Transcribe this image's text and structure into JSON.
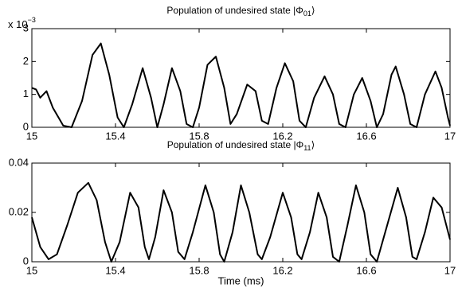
{
  "chart_data": [
    {
      "type": "line",
      "title": "Population of undesired state |Φ",
      "title_subscript": "01",
      "title_suffix": "⟩",
      "y_multiplier": "x 10",
      "y_multiplier_exponent": "−3",
      "color": "#000000",
      "xlim": [
        15,
        17
      ],
      "xticks": [
        15,
        15.4,
        15.8,
        16.2,
        16.6,
        17
      ],
      "ylim": [
        0,
        3
      ],
      "yticks": [
        0,
        1,
        2,
        3
      ],
      "grid": false,
      "x": [
        15.0,
        15.02,
        15.04,
        15.07,
        15.1,
        15.15,
        15.19,
        15.24,
        15.29,
        15.33,
        15.37,
        15.41,
        15.44,
        15.48,
        15.53,
        15.57,
        15.6,
        15.63,
        15.67,
        15.71,
        15.74,
        15.77,
        15.8,
        15.84,
        15.88,
        15.92,
        15.95,
        15.98,
        16.03,
        16.07,
        16.1,
        16.13,
        16.17,
        16.21,
        16.25,
        16.28,
        16.31,
        16.35,
        16.4,
        16.44,
        16.47,
        16.5,
        16.54,
        16.58,
        16.62,
        16.65,
        16.68,
        16.72,
        16.74,
        16.78,
        16.81,
        16.84,
        16.88,
        16.93,
        16.96,
        16.99,
        17.0
      ],
      "values": [
        1.2,
        1.15,
        0.9,
        1.1,
        0.6,
        0.05,
        0.0,
        0.8,
        2.2,
        2.55,
        1.6,
        0.3,
        0.0,
        0.7,
        1.8,
        0.9,
        0.0,
        0.7,
        1.8,
        1.1,
        0.1,
        0.0,
        0.6,
        1.9,
        2.15,
        1.2,
        0.1,
        0.4,
        1.3,
        1.1,
        0.2,
        0.1,
        1.2,
        1.95,
        1.4,
        0.2,
        0.0,
        0.9,
        1.55,
        1.0,
        0.1,
        0.0,
        1.0,
        1.5,
        0.8,
        0.0,
        0.4,
        1.6,
        1.85,
        1.0,
        0.1,
        0.0,
        1.0,
        1.7,
        1.2,
        0.3,
        0.05
      ]
    },
    {
      "type": "line",
      "title": "Population of undesired state |Φ",
      "title_subscript": "11",
      "title_suffix": "⟩",
      "xlabel": "Time (ms)",
      "color": "#000000",
      "xlim": [
        15,
        17
      ],
      "xticks": [
        15,
        15.4,
        15.8,
        16.2,
        16.6,
        17
      ],
      "ylim": [
        0,
        0.04
      ],
      "yticks": [
        0,
        0.02,
        0.04
      ],
      "grid": false,
      "x": [
        15.0,
        15.04,
        15.08,
        15.12,
        15.17,
        15.22,
        15.27,
        15.31,
        15.35,
        15.38,
        15.42,
        15.47,
        15.51,
        15.54,
        15.56,
        15.59,
        15.63,
        15.67,
        15.7,
        15.73,
        15.77,
        15.83,
        15.87,
        15.9,
        15.92,
        15.96,
        16.0,
        16.04,
        16.08,
        16.1,
        16.14,
        16.2,
        16.24,
        16.27,
        16.29,
        16.33,
        16.37,
        16.41,
        16.44,
        16.47,
        16.51,
        16.55,
        16.59,
        16.62,
        16.65,
        16.69,
        16.75,
        16.79,
        16.82,
        16.84,
        16.88,
        16.92,
        16.96,
        17.0
      ],
      "values": [
        0.018,
        0.006,
        0.001,
        0.003,
        0.015,
        0.028,
        0.032,
        0.025,
        0.008,
        0.0,
        0.008,
        0.028,
        0.022,
        0.006,
        0.001,
        0.01,
        0.029,
        0.02,
        0.004,
        0.001,
        0.012,
        0.031,
        0.02,
        0.003,
        0.0,
        0.012,
        0.031,
        0.02,
        0.003,
        0.001,
        0.01,
        0.028,
        0.018,
        0.003,
        0.001,
        0.012,
        0.028,
        0.018,
        0.002,
        0.0,
        0.015,
        0.031,
        0.02,
        0.003,
        0.0,
        0.012,
        0.03,
        0.018,
        0.002,
        0.001,
        0.012,
        0.026,
        0.022,
        0.009
      ]
    }
  ]
}
